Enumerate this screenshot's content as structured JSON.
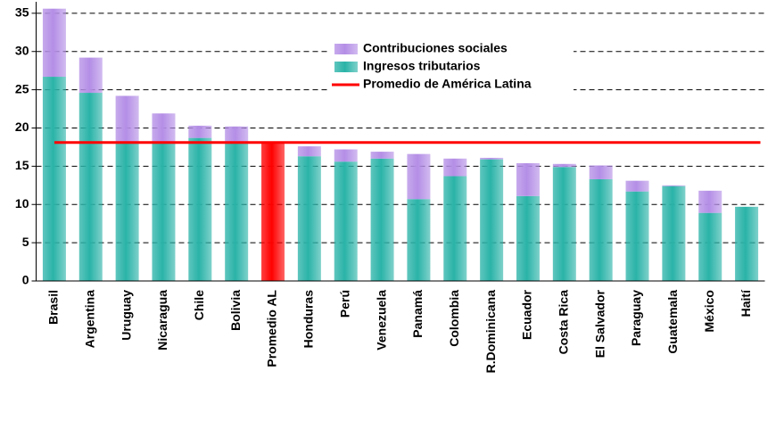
{
  "chart_data": {
    "type": "stacked_bar",
    "categories": [
      "Brasil",
      "Argentina",
      "Uruguay",
      "Nicaragua",
      "Chile",
      "Bolivia",
      "Promedio AL",
      "Honduras",
      "Perú",
      "Venezuela",
      "Panamá",
      "Colombia",
      "R.Dominicana",
      "Ecuador",
      "Costa Rica",
      "El Salvador",
      "Paraguay",
      "Guatemala",
      "México",
      "Haití"
    ],
    "series": [
      {
        "name": "Ingresos tributarios",
        "color": "#2ab3a8",
        "bar_colors": [
          null,
          null,
          null,
          null,
          null,
          null,
          "#ff0000",
          null,
          null,
          null,
          null,
          null,
          null,
          null,
          null,
          null,
          null,
          null,
          null,
          null
        ],
        "values": [
          26.7,
          24.6,
          18.1,
          18.1,
          18.7,
          18.1,
          18.1,
          16.3,
          15.6,
          16.0,
          10.7,
          13.7,
          15.9,
          11.1,
          14.9,
          13.3,
          11.7,
          12.4,
          8.9,
          9.7
        ]
      },
      {
        "name": "Contribuciones sociales",
        "color": "#b48ee6",
        "values": [
          8.9,
          4.6,
          6.1,
          3.8,
          1.6,
          2.1,
          0,
          1.3,
          1.6,
          0.9,
          5.9,
          2.3,
          0.2,
          4.3,
          0.4,
          1.8,
          1.4,
          0.1,
          2.9,
          0
        ]
      }
    ],
    "reference_line": {
      "name": "Promedio de América Latina",
      "color": "#ff0000",
      "value": 18.1
    },
    "ylim": [
      0,
      36.5
    ],
    "yticks": [
      0,
      5,
      10,
      15,
      20,
      25,
      30,
      35
    ],
    "grid": true
  }
}
